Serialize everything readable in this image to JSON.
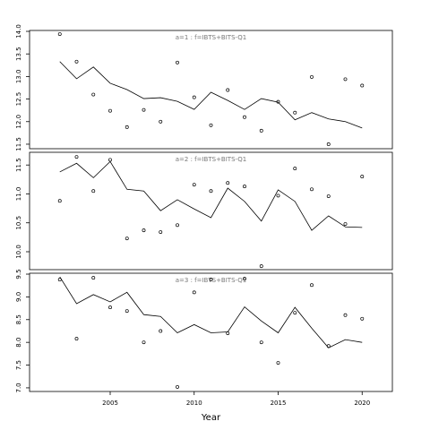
{
  "chart_data": [
    {
      "type": "line",
      "title": "a=1 : f=IBTS+BITS-Q1",
      "x": [
        2002,
        2003,
        2004,
        2005,
        2006,
        2007,
        2008,
        2009,
        2010,
        2011,
        2012,
        2013,
        2014,
        2015,
        2016,
        2017,
        2018,
        2019,
        2020
      ],
      "xlim": [
        2000.2,
        2021.8
      ],
      "ylim": [
        11.4,
        14.02
      ],
      "yticks": [
        11.5,
        {
          "value": 12,
          "label": "12.0"
        },
        12.5,
        {
          "value": 13,
          "label": "13.0"
        },
        13.5,
        {
          "value": 14,
          "label": "14.0"
        }
      ],
      "series": [
        {
          "style": "points",
          "color": "#000000",
          "values": [
            13.94,
            13.33,
            12.6,
            12.24,
            11.88,
            12.26,
            12.0,
            13.31,
            12.54,
            11.92,
            12.7,
            12.1,
            11.8,
            12.44,
            12.2,
            12.99,
            11.5,
            12.94,
            12.8
          ]
        },
        {
          "style": "line",
          "color": "#000000",
          "values": [
            13.33,
            12.95,
            13.21,
            12.85,
            12.71,
            12.51,
            12.53,
            12.45,
            12.27,
            12.65,
            12.47,
            12.27,
            12.51,
            12.43,
            12.04,
            12.2,
            12.06,
            12.0,
            11.86
          ]
        }
      ]
    },
    {
      "type": "line",
      "title": "a=2 : f=IBTS+BITS-Q1",
      "x": [
        2002,
        2003,
        2004,
        2005,
        2006,
        2007,
        2008,
        2009,
        2010,
        2011,
        2012,
        2013,
        2014,
        2015,
        2016,
        2017,
        2018,
        2019,
        2020
      ],
      "xlim": [
        2000.2,
        2021.8
      ],
      "ylim": [
        9.69,
        11.72
      ],
      "yticks": [
        {
          "value": 10,
          "label": "10.0"
        },
        10.5,
        {
          "value": 11,
          "label": "11.0"
        },
        11.5
      ],
      "series": [
        {
          "style": "points",
          "color": "#000000",
          "values": [
            10.88,
            11.64,
            11.05,
            11.59,
            10.23,
            10.37,
            10.34,
            10.46,
            11.16,
            11.05,
            11.19,
            11.13,
            9.75,
            10.97,
            11.44,
            11.08,
            10.96,
            10.48,
            11.3
          ]
        },
        {
          "style": "line",
          "color": "#000000",
          "values": [
            11.38,
            11.53,
            11.28,
            11.56,
            11.08,
            11.05,
            10.71,
            10.9,
            10.74,
            10.59,
            11.1,
            10.87,
            10.53,
            11.07,
            10.87,
            10.37,
            10.62,
            10.43,
            10.42
          ]
        }
      ]
    },
    {
      "type": "line",
      "title": "a=3 : f=IBTS+BITS-Q1",
      "x": [
        2002,
        2003,
        2004,
        2005,
        2006,
        2007,
        2008,
        2009,
        2010,
        2011,
        2012,
        2013,
        2014,
        2015,
        2016,
        2017,
        2018,
        2019,
        2020
      ],
      "xlim": [
        2000.2,
        2021.8
      ],
      "ylim": [
        6.92,
        9.52
      ],
      "xticks": [
        2005,
        2010,
        2015,
        2020
      ],
      "xlabel": "Year",
      "yticks": [
        {
          "value": 7,
          "label": "7.0"
        },
        7.5,
        {
          "value": 8,
          "label": "8.0"
        },
        8.5,
        {
          "value": 9,
          "label": "9.0"
        },
        9.5
      ],
      "series": [
        {
          "style": "points",
          "color": "#000000",
          "values": [
            9.38,
            8.08,
            9.42,
            8.77,
            8.69,
            8.0,
            8.25,
            7.02,
            9.1,
            9.38,
            8.2,
            9.4,
            8.0,
            7.55,
            8.65,
            9.26,
            7.92,
            8.6,
            8.52
          ]
        },
        {
          "style": "line",
          "color": "#000000",
          "values": [
            9.44,
            8.85,
            9.05,
            8.89,
            9.1,
            8.61,
            8.57,
            8.21,
            8.39,
            8.21,
            8.23,
            8.78,
            8.47,
            8.21,
            8.77,
            8.31,
            7.88,
            8.06,
            8.0
          ]
        }
      ]
    }
  ]
}
